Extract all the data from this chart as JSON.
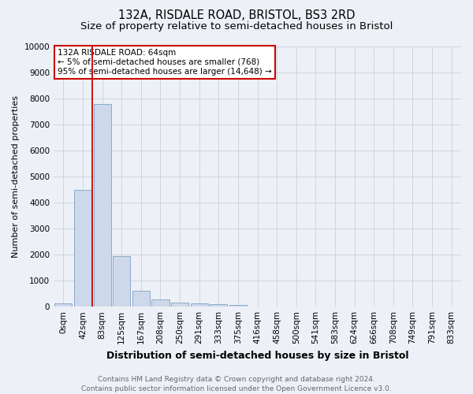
{
  "title": "132A, RISDALE ROAD, BRISTOL, BS3 2RD",
  "subtitle": "Size of property relative to semi-detached houses in Bristol",
  "xlabel": "Distribution of semi-detached houses by size in Bristol",
  "ylabel": "Number of semi-detached properties",
  "bar_labels": [
    "0sqm",
    "42sqm",
    "83sqm",
    "125sqm",
    "167sqm",
    "208sqm",
    "250sqm",
    "291sqm",
    "333sqm",
    "375sqm",
    "416sqm",
    "458sqm",
    "500sqm",
    "541sqm",
    "583sqm",
    "624sqm",
    "666sqm",
    "708sqm",
    "749sqm",
    "791sqm",
    "833sqm"
  ],
  "bar_values": [
    130,
    4500,
    7800,
    1930,
    620,
    280,
    155,
    120,
    90,
    55,
    0,
    0,
    0,
    0,
    0,
    0,
    0,
    0,
    0,
    0,
    0
  ],
  "bar_color": "#cdd9ea",
  "bar_edge_color": "#8baac8",
  "grid_color": "#c8d0da",
  "background_color": "#edf1f7",
  "vline_color": "#cc0000",
  "annotation_text": "132A RISDALE ROAD: 64sqm\n← 5% of semi-detached houses are smaller (768)\n95% of semi-detached houses are larger (14,648) →",
  "annotation_box_facecolor": "#ffffff",
  "annotation_box_edge": "#cc0000",
  "ylim": [
    0,
    10000
  ],
  "yticks": [
    0,
    1000,
    2000,
    3000,
    4000,
    5000,
    6000,
    7000,
    8000,
    9000,
    10000
  ],
  "footnote": "Contains HM Land Registry data © Crown copyright and database right 2024.\nContains public sector information licensed under the Open Government Licence v3.0.",
  "title_fontsize": 10.5,
  "subtitle_fontsize": 9.5,
  "xlabel_fontsize": 9,
  "ylabel_fontsize": 8,
  "tick_fontsize": 7.5,
  "annotation_fontsize": 7.5,
  "footnote_fontsize": 6.5
}
